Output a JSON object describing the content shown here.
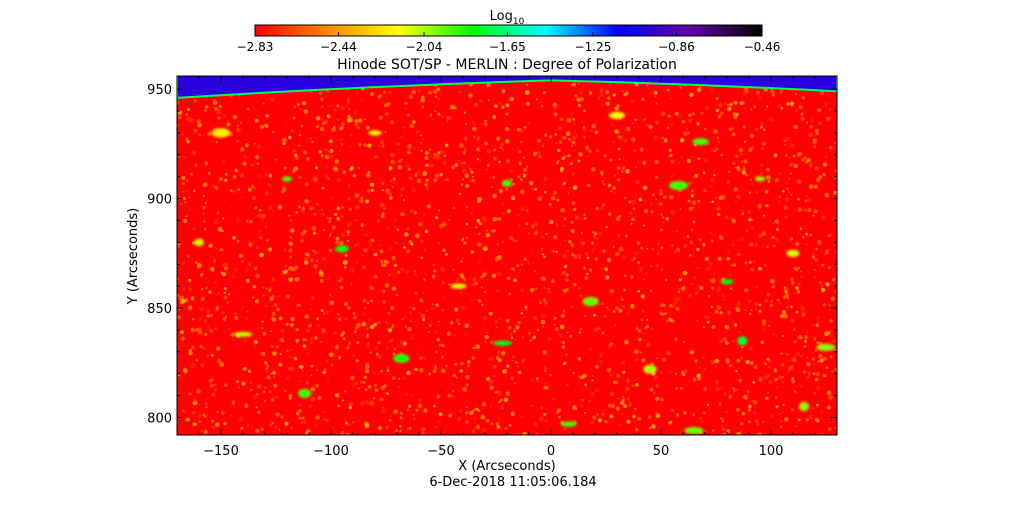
{
  "chart_data": {
    "type": "heatmap",
    "title": "Hinode SOT/SP - MERLIN : Degree of Polarization",
    "xlabel": "X (Arcseconds)",
    "ylabel": "Y (Arcseconds)",
    "timestamp": "6-Dec-2018 11:05:06.184",
    "xlim": [
      -170,
      130
    ],
    "ylim": [
      792,
      956
    ],
    "x_ticks": [
      -150,
      -100,
      -50,
      0,
      50,
      100
    ],
    "x_tick_labels": [
      "−150",
      "−100",
      "−50",
      "0",
      "50",
      "100"
    ],
    "y_ticks": [
      800,
      850,
      900,
      950
    ],
    "y_tick_labels": [
      "800",
      "850",
      "900",
      "950"
    ],
    "colorbar": {
      "label_main": "Log",
      "label_sub": "10",
      "range": [
        -2.83,
        -0.46
      ],
      "ticks": [
        -2.83,
        -2.44,
        -2.04,
        -1.65,
        -1.25,
        -0.86,
        -0.46
      ],
      "tick_labels": [
        "−2.83",
        "−2.44",
        "−2.04",
        "−1.65",
        "−1.25",
        "−0.86",
        "−0.46"
      ],
      "colormap": [
        "#ff0000",
        "#ff8800",
        "#ffff00",
        "#00ff00",
        "#00ffff",
        "#0000ff",
        "#6600aa",
        "#000000"
      ]
    },
    "map_description": {
      "background_value": -2.83,
      "limb": {
        "y_at_xmin": 946,
        "y_at_x0": 954,
        "y_at_xmax": 949,
        "off_disk_value": -1.0
      }
    },
    "features": [
      {
        "x": -120,
        "y": 909,
        "value": -1.9
      },
      {
        "x": -95,
        "y": 877,
        "value": -1.8
      },
      {
        "x": -68,
        "y": 827,
        "value": -1.85
      },
      {
        "x": -22,
        "y": 834,
        "value": -1.8
      },
      {
        "x": -20,
        "y": 907,
        "value": -1.9
      },
      {
        "x": -112,
        "y": 811,
        "value": -1.9
      },
      {
        "x": 8,
        "y": 797,
        "value": -1.9
      },
      {
        "x": 65,
        "y": 794,
        "value": -1.95
      },
      {
        "x": 87,
        "y": 835,
        "value": -1.75
      },
      {
        "x": 80,
        "y": 862,
        "value": -1.8
      },
      {
        "x": 68,
        "y": 926,
        "value": -1.9
      },
      {
        "x": 58,
        "y": 906,
        "value": -1.9
      },
      {
        "x": 95,
        "y": 909,
        "value": -2.0
      },
      {
        "x": 110,
        "y": 875,
        "value": -2.1
      },
      {
        "x": 18,
        "y": 853,
        "value": -1.95
      },
      {
        "x": -140,
        "y": 838,
        "value": -2.05
      },
      {
        "x": -160,
        "y": 880,
        "value": -2.1
      },
      {
        "x": 45,
        "y": 822,
        "value": -2.05
      },
      {
        "x": -42,
        "y": 860,
        "value": -2.1
      },
      {
        "x": 125,
        "y": 832,
        "value": -2.0
      },
      {
        "x": 115,
        "y": 805,
        "value": -2.0
      },
      {
        "x": -80,
        "y": 930,
        "value": -2.15
      },
      {
        "x": 30,
        "y": 938,
        "value": -2.15
      },
      {
        "x": -150,
        "y": 930,
        "value": -2.2
      }
    ]
  }
}
